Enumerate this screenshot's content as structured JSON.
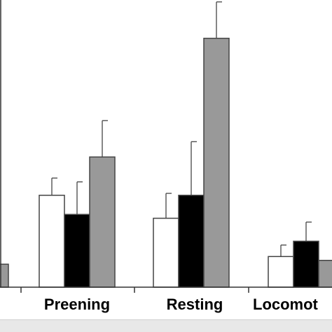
{
  "chart_data": {
    "type": "bar",
    "categories": [
      "",
      "Preening",
      "Resting",
      "Locomot"
    ],
    "series": [
      {
        "color": "#ffffff",
        "values": [
          null,
          2.4,
          1.8,
          0.8
        ]
      },
      {
        "color": "#000000",
        "values": [
          null,
          1.9,
          2.4,
          1.2
        ]
      },
      {
        "color": "#999999",
        "values": [
          0.6,
          3.4,
          6.5,
          0.7
        ]
      }
    ],
    "errors": [
      [
        null,
        0.45,
        0.65,
        0.3
      ],
      [
        null,
        0.85,
        1.4,
        0.5
      ],
      [
        null,
        0.95,
        0.95,
        null
      ]
    ],
    "ylim": [
      0,
      7.5
    ]
  }
}
